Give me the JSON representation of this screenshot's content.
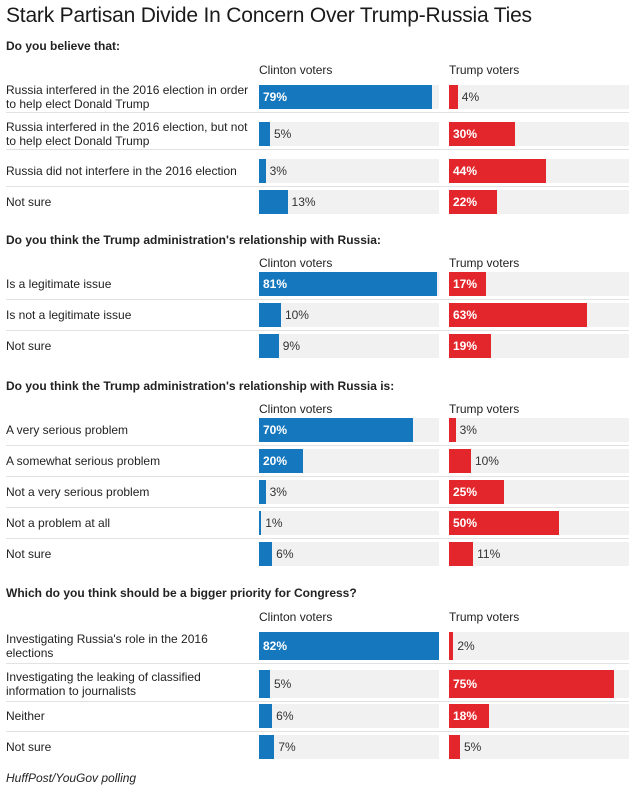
{
  "title": "Stark Partisan Divide In Concern Over Trump-Russia Ties",
  "source": "HuffPost/YouGov polling",
  "colors": {
    "clinton": "#1577bd",
    "trump": "#e3262b",
    "track": "#f1f1f1"
  },
  "chart_data": {
    "type": "bar",
    "orientation": "horizontal",
    "value_unit": "%",
    "xlim": [
      0,
      82
    ],
    "series_names": [
      "Clinton voters",
      "Trump voters"
    ],
    "questions": [
      {
        "title": "Do you believe that:",
        "categories": [
          "Russia interfered in the 2016 election in order to help elect Donald Trump",
          "Russia interfered in the 2016 election, but not to help elect Donald Trump",
          "Russia did not interfere in the 2016 election",
          "Not sure"
        ],
        "series": [
          {
            "name": "Clinton voters",
            "values": [
              79,
              5,
              3,
              13
            ]
          },
          {
            "name": "Trump voters",
            "values": [
              4,
              30,
              44,
              22
            ]
          }
        ]
      },
      {
        "title": "Do you think the Trump administration's relationship with Russia:",
        "categories": [
          "Is a legitimate issue",
          "Is not a legitimate issue",
          "Not sure"
        ],
        "series": [
          {
            "name": "Clinton voters",
            "values": [
              81,
              10,
              9
            ]
          },
          {
            "name": "Trump voters",
            "values": [
              17,
              63,
              19
            ]
          }
        ]
      },
      {
        "title": "Do you think the Trump administration's relationship with Russia is:",
        "categories": [
          "A very serious problem",
          "A somewhat serious problem",
          "Not a very serious problem",
          "Not a problem at all",
          "Not sure"
        ],
        "series": [
          {
            "name": "Clinton voters",
            "values": [
              70,
              20,
              3,
              1,
              6
            ]
          },
          {
            "name": "Trump voters",
            "values": [
              3,
              10,
              25,
              50,
              11
            ]
          }
        ]
      },
      {
        "title": "Which do you think should be a bigger priority for Congress?",
        "categories": [
          "Investigating Russia's role in the 2016 elections",
          "Investigating the leaking of classified information to journalists",
          "Neither",
          "Not sure"
        ],
        "series": [
          {
            "name": "Clinton voters",
            "values": [
              82,
              5,
              6,
              7
            ]
          },
          {
            "name": "Trump voters",
            "values": [
              2,
              75,
              18,
              5
            ]
          }
        ]
      }
    ]
  }
}
